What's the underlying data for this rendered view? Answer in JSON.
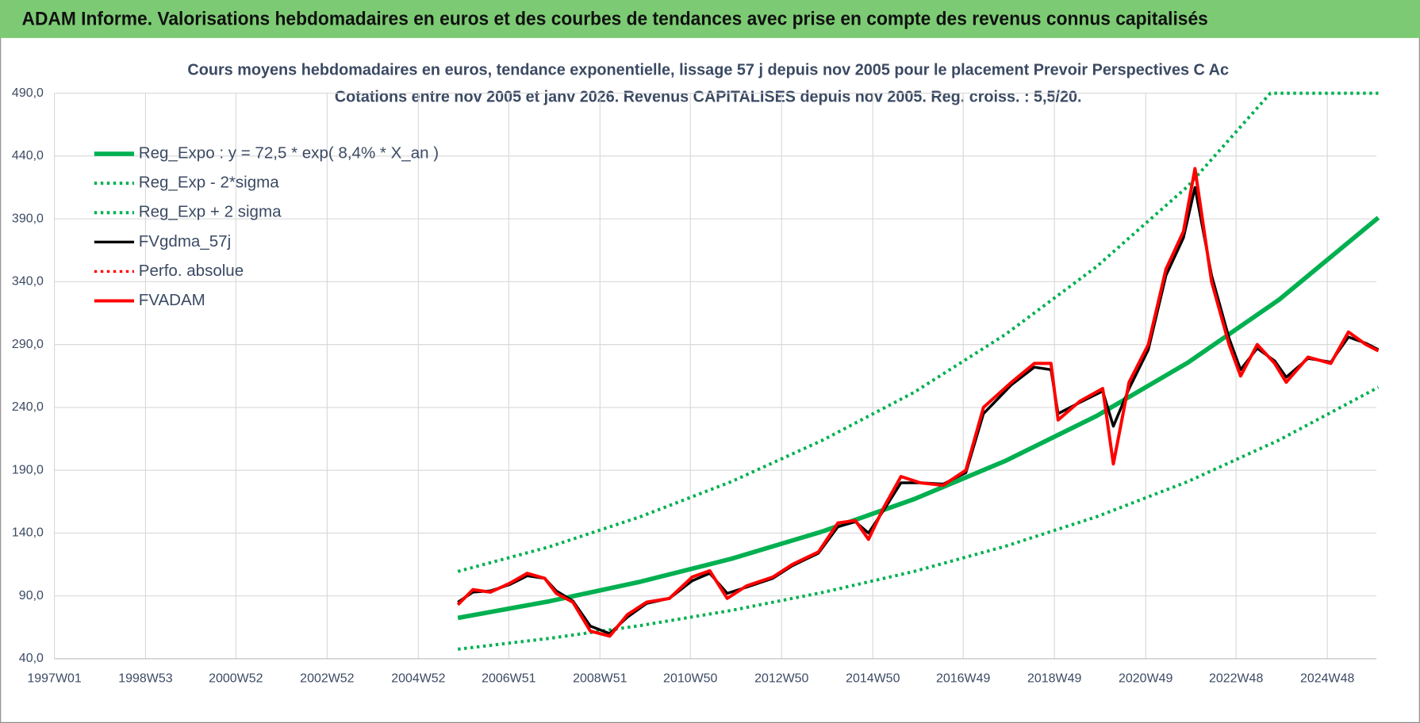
{
  "header": {
    "title": "ADAM Informe. Valorisations hebdomadaires en euros et des courbes de tendances avec prise en compte des revenus connus capitalisés"
  },
  "chart_data": {
    "type": "line",
    "title": "Cours moyens hebdomadaires en euros, tendance exponentielle, lissage 57 j depuis nov 2005 pour le placement Prevoir Perspectives C Ac",
    "subtitle": "Cotations entre nov 2005 et janv 2026. Revenus CAPITALISES depuis nov 2005. Reg. croiss. : 5,5/20.",
    "xlim": [
      "1997W01",
      "2025W52"
    ],
    "xticks": [
      "1997W01",
      "1998W53",
      "2000W52",
      "2002W52",
      "2004W52",
      "2006W51",
      "2008W51",
      "2010W50",
      "2012W50",
      "2014W50",
      "2016W49",
      "2018W49",
      "2020W49",
      "2022W48",
      "2024W48"
    ],
    "ylim": [
      40,
      490
    ],
    "yticks": [
      {
        "value": 40,
        "label": "40,0"
      },
      {
        "value": 90,
        "label": "90,0"
      },
      {
        "value": 140,
        "label": "140,0"
      },
      {
        "value": 190,
        "label": "190,0"
      },
      {
        "value": 240,
        "label": "240,0"
      },
      {
        "value": 290,
        "label": "290,0"
      },
      {
        "value": 340,
        "label": "340,0"
      },
      {
        "value": 390,
        "label": "390,0"
      },
      {
        "value": 440,
        "label": "440,0"
      },
      {
        "value": 490,
        "label": "490,0"
      }
    ],
    "grid": true,
    "legend": "top-left",
    "series": [
      {
        "name": "Reg_Expo : y = 72,5 * exp( 8,4% *  X_an )",
        "color": "#00b050",
        "style": "solid",
        "x": [
          "2005W45",
          "2007W45",
          "2009W45",
          "2011W45",
          "2013W45",
          "2015W45",
          "2017W45",
          "2019W45",
          "2021W45",
          "2023W45",
          "2026W02"
        ],
        "values": [
          72.5,
          85.7,
          101.3,
          119.6,
          141.4,
          167,
          197.4,
          233.2,
          275.6,
          325.7,
          391
        ]
      },
      {
        "name": "Reg_Exp - 2*sigma",
        "color": "#00b050",
        "style": "dotted",
        "x": [
          "2005W45",
          "2007W45",
          "2009W45",
          "2011W45",
          "2013W45",
          "2015W45",
          "2017W45",
          "2019W45",
          "2021W45",
          "2023W45",
          "2026W02"
        ],
        "values": [
          47.6,
          56.2,
          66.4,
          78.5,
          92.8,
          109.5,
          129.5,
          153,
          181,
          214,
          256
        ]
      },
      {
        "name": "Reg_Exp + 2 sigma",
        "color": "#00b050",
        "style": "dotted",
        "x": [
          "2005W45",
          "2007W45",
          "2009W45",
          "2011W45",
          "2013W45",
          "2015W45",
          "2017W45",
          "2019W45",
          "2021W45",
          "2023W35",
          "2026W02"
        ],
        "values": [
          109.5,
          129,
          153,
          181,
          214,
          252,
          298,
          352,
          416,
          490,
          490
        ]
      },
      {
        "name": "FVgdma_57j",
        "color": "#000000",
        "style": "solid",
        "x": [
          "2005W45",
          "2006W10",
          "2006W30",
          "2006W52",
          "2007W20",
          "2007W40",
          "2008W01",
          "2008W20",
          "2008W40",
          "2009W10",
          "2009W30",
          "2009W52",
          "2010W26",
          "2010W52",
          "2011W20",
          "2011W40",
          "2012W10",
          "2012W40",
          "2013W10",
          "2013W40",
          "2014W10",
          "2014W30",
          "2014W45",
          "2015W10",
          "2015W30",
          "2015W52",
          "2016W26",
          "2016W52",
          "2017W20",
          "2017W52",
          "2018W26",
          "2018W45",
          "2019W01",
          "2019W26",
          "2019W52",
          "2020W12",
          "2020W30",
          "2020W52",
          "2021W20",
          "2021W40",
          "2022W01",
          "2022W20",
          "2022W40",
          "2023W01",
          "2023W20",
          "2023W40",
          "2024W01",
          "2024W26",
          "2024W52",
          "2025W20",
          "2025W40",
          "2026W02"
        ],
        "values": [
          85,
          93,
          94,
          99,
          106,
          104,
          94,
          86,
          66,
          60,
          73,
          84,
          88,
          102,
          108,
          92,
          97,
          104,
          114,
          124,
          145,
          149,
          140,
          158,
          180,
          180,
          179,
          188,
          235,
          258,
          272,
          270,
          235,
          244,
          253,
          225,
          255,
          286,
          345,
          375,
          415,
          345,
          295,
          270,
          287,
          277,
          264,
          279,
          276,
          296,
          291,
          286
        ]
      },
      {
        "name": "Perfo. absolue",
        "color": "#ff0000",
        "style": "dotted",
        "x": [
          "2005W45",
          "2006W10",
          "2006W30",
          "2006W52",
          "2007W20",
          "2007W40",
          "2008W01",
          "2008W20",
          "2008W40",
          "2009W10",
          "2009W30",
          "2009W52",
          "2010W26",
          "2010W52",
          "2011W20",
          "2011W40",
          "2012W10",
          "2012W40",
          "2013W10",
          "2013W40",
          "2014W10",
          "2014W30",
          "2014W45",
          "2015W10",
          "2015W30",
          "2015W52",
          "2016W26",
          "2016W52",
          "2017W20",
          "2017W52",
          "2018W26",
          "2018W45",
          "2019W01",
          "2019W26",
          "2019W52",
          "2020W12",
          "2020W30",
          "2020W52",
          "2021W20",
          "2021W40",
          "2022W01",
          "2022W20",
          "2022W40",
          "2023W01",
          "2023W20",
          "2023W40",
          "2024W01",
          "2024W26",
          "2024W52",
          "2025W20",
          "2025W40",
          "2026W02"
        ],
        "values": [
          83,
          95,
          93,
          100,
          108,
          104,
          92,
          85,
          62,
          58,
          75,
          85,
          88,
          105,
          110,
          88,
          98,
          105,
          115,
          125,
          148,
          150,
          135,
          160,
          185,
          180,
          178,
          190,
          240,
          260,
          275,
          275,
          230,
          245,
          255,
          195,
          260,
          290,
          350,
          380,
          430,
          340,
          290,
          265,
          290,
          275,
          260,
          280,
          275,
          300,
          290,
          285
        ]
      },
      {
        "name": "FVADAM",
        "color": "#ff0000",
        "style": "solid",
        "x": [
          "2005W45",
          "2006W10",
          "2006W30",
          "2006W52",
          "2007W20",
          "2007W40",
          "2008W01",
          "2008W20",
          "2008W40",
          "2009W10",
          "2009W30",
          "2009W52",
          "2010W26",
          "2010W52",
          "2011W20",
          "2011W40",
          "2012W10",
          "2012W40",
          "2013W10",
          "2013W40",
          "2014W10",
          "2014W30",
          "2014W45",
          "2015W10",
          "2015W30",
          "2015W52",
          "2016W26",
          "2016W52",
          "2017W20",
          "2017W52",
          "2018W26",
          "2018W45",
          "2019W01",
          "2019W26",
          "2019W52",
          "2020W12",
          "2020W30",
          "2020W52",
          "2021W20",
          "2021W40",
          "2022W01",
          "2022W20",
          "2022W40",
          "2023W01",
          "2023W20",
          "2023W40",
          "2024W01",
          "2024W26",
          "2024W52",
          "2025W20",
          "2025W40",
          "2026W02"
        ],
        "values": [
          83,
          95,
          93,
          100,
          108,
          104,
          92,
          85,
          62,
          58,
          75,
          85,
          88,
          105,
          110,
          88,
          98,
          105,
          115,
          125,
          148,
          150,
          135,
          160,
          185,
          180,
          178,
          190,
          240,
          260,
          275,
          275,
          230,
          245,
          255,
          195,
          260,
          290,
          350,
          380,
          430,
          340,
          290,
          265,
          290,
          275,
          260,
          280,
          275,
          300,
          290,
          285
        ]
      }
    ]
  }
}
